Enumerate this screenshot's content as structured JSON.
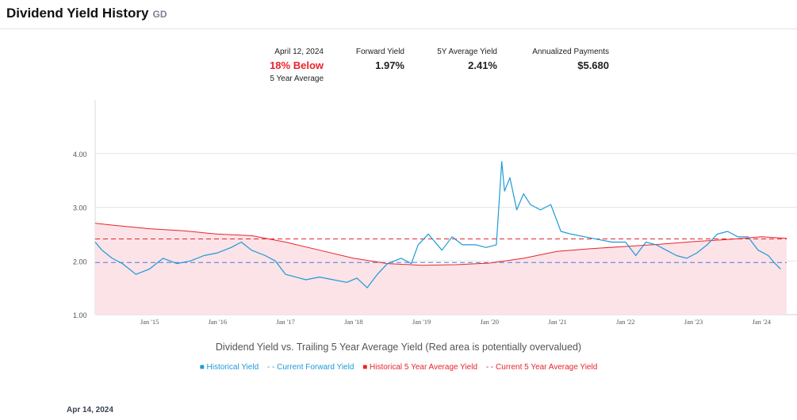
{
  "header": {
    "title": "Dividend Yield History",
    "ticker": "GD"
  },
  "stats": {
    "date": "April 12, 2024",
    "pct_text": "18%  Below",
    "pct_sub": "5 Year Average",
    "forward_label": "Forward Yield",
    "forward_value": "1.97%",
    "avg_label": "5Y Average Yield",
    "avg_value": "2.41%",
    "payments_label": "Annualized Payments",
    "payments_value": "$5.680"
  },
  "colors": {
    "historical": "#1e9ad6",
    "forward": "#4a7de0",
    "avg": "#e8242c",
    "fill": "#fbe3e8",
    "grid": "#e6e6e6"
  },
  "caption": "Dividend Yield vs. Trailing 5 Year Average Yield (Red area is potentially overvalued)",
  "legend": {
    "historical": "Historical Yield",
    "forward": "- - Current Forward Yield",
    "avg": "Historical 5 Year Average Yield",
    "current_avg": "- - Current 5 Year Average Yield"
  },
  "footer_date": "Apr 14, 2024",
  "chart_data": {
    "type": "line",
    "title": "",
    "xlabel": "",
    "ylabel": "",
    "ylim": [
      1.0,
      5.0
    ],
    "xlim": [
      2014.2,
      2024.37
    ],
    "y_ticks": [
      "1.00",
      "2.00",
      "3.00",
      "4.00"
    ],
    "x_ticks": [
      {
        "label": "Jan '15",
        "x": 2015.0
      },
      {
        "label": "Jan '16",
        "x": 2016.0
      },
      {
        "label": "Jan '17",
        "x": 2017.0
      },
      {
        "label": "Jan '18",
        "x": 2018.0
      },
      {
        "label": "Jan '19",
        "x": 2019.0
      },
      {
        "label": "Jan '20",
        "x": 2020.0
      },
      {
        "label": "Jan '21",
        "x": 2021.0
      },
      {
        "label": "Jan '22",
        "x": 2022.0
      },
      {
        "label": "Jan '23",
        "x": 2023.0
      },
      {
        "label": "Jan '24",
        "x": 2024.0
      }
    ],
    "series": [
      {
        "name": "Historical Yield",
        "x": [
          2014.2,
          2014.3,
          2014.45,
          2014.6,
          2014.8,
          2015.0,
          2015.2,
          2015.4,
          2015.6,
          2015.8,
          2016.0,
          2016.2,
          2016.35,
          2016.5,
          2016.7,
          2016.85,
          2017.0,
          2017.15,
          2017.3,
          2017.5,
          2017.7,
          2017.9,
          2018.05,
          2018.2,
          2018.35,
          2018.5,
          2018.7,
          2018.85,
          2018.95,
          2019.1,
          2019.3,
          2019.45,
          2019.6,
          2019.8,
          2019.95,
          2020.1,
          2020.18,
          2020.22,
          2020.3,
          2020.4,
          2020.5,
          2020.6,
          2020.75,
          2020.9,
          2021.05,
          2021.2,
          2021.4,
          2021.6,
          2021.8,
          2022.0,
          2022.15,
          2022.3,
          2022.45,
          2022.6,
          2022.75,
          2022.9,
          2023.05,
          2023.2,
          2023.35,
          2023.5,
          2023.65,
          2023.8,
          2023.95,
          2024.1,
          2024.2,
          2024.28
        ],
        "values": [
          2.35,
          2.2,
          2.05,
          1.95,
          1.75,
          1.85,
          2.05,
          1.95,
          2.0,
          2.1,
          2.15,
          2.25,
          2.35,
          2.2,
          2.1,
          2.0,
          1.75,
          1.7,
          1.65,
          1.7,
          1.65,
          1.6,
          1.68,
          1.5,
          1.75,
          1.95,
          2.05,
          1.95,
          2.3,
          2.5,
          2.2,
          2.45,
          2.3,
          2.3,
          2.25,
          2.3,
          3.85,
          3.3,
          3.55,
          2.95,
          3.25,
          3.05,
          2.95,
          3.05,
          2.55,
          2.5,
          2.45,
          2.4,
          2.35,
          2.35,
          2.1,
          2.35,
          2.3,
          2.2,
          2.1,
          2.05,
          2.15,
          2.3,
          2.5,
          2.55,
          2.45,
          2.45,
          2.2,
          2.1,
          1.95,
          1.85
        ]
      },
      {
        "name": "Historical 5 Year Average Yield",
        "x": [
          2014.2,
          2014.5,
          2015.0,
          2015.5,
          2016.0,
          2016.5,
          2017.0,
          2017.5,
          2018.0,
          2018.5,
          2019.0,
          2019.5,
          2020.0,
          2020.5,
          2021.0,
          2021.5,
          2022.0,
          2022.5,
          2023.0,
          2023.5,
          2024.0,
          2024.37
        ],
        "values": [
          2.7,
          2.66,
          2.6,
          2.56,
          2.5,
          2.47,
          2.35,
          2.2,
          2.05,
          1.95,
          1.92,
          1.93,
          1.96,
          2.05,
          2.18,
          2.23,
          2.27,
          2.31,
          2.36,
          2.4,
          2.45,
          2.42
        ]
      },
      {
        "name": "Current Forward Yield",
        "value": 1.97
      },
      {
        "name": "Current 5 Year Average Yield",
        "value": 2.41
      }
    ]
  }
}
